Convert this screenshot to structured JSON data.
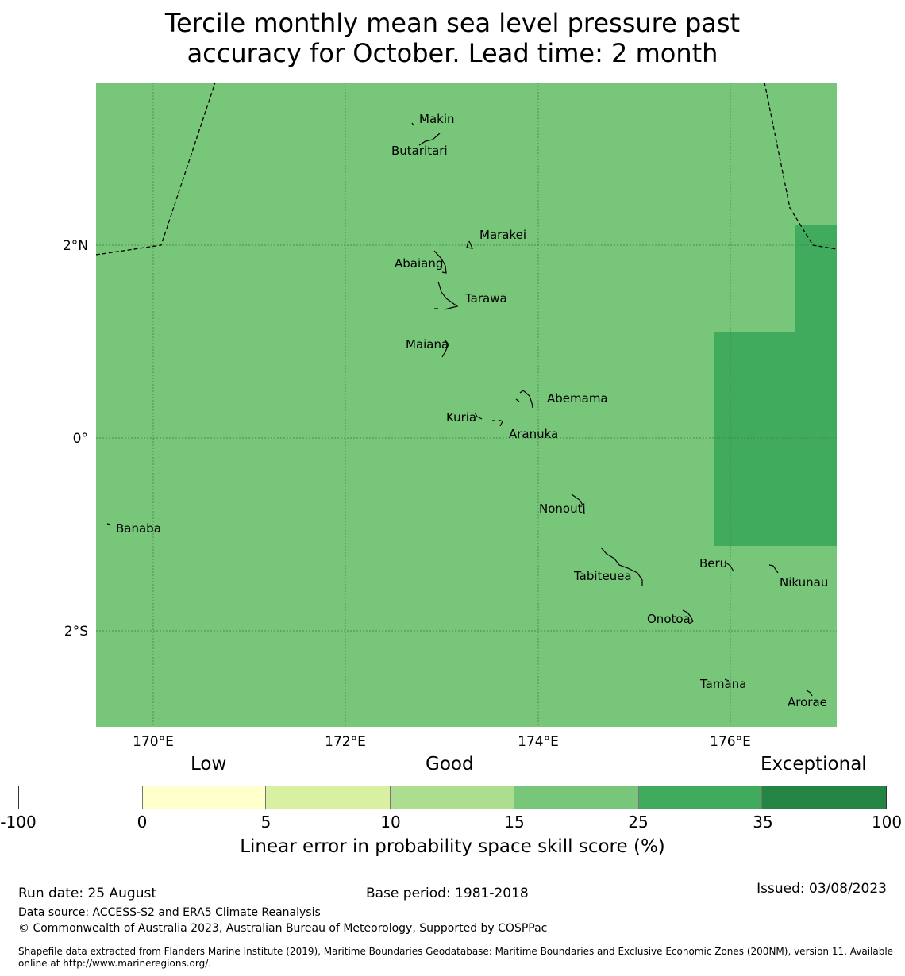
{
  "title_line1": "Tercile monthly mean sea level pressure past",
  "title_line2": "accuracy for October. Lead time: 2 month",
  "colors": {
    "base_fill": "#78c679",
    "high_fill": "#41ab5d",
    "grid": "#3f7d43",
    "boundary": "#000000"
  },
  "map": {
    "lon_labels": [
      "170°E",
      "172°E",
      "174°E",
      "176°E"
    ],
    "lat_labels": [
      "2°N",
      "0°",
      "2°S"
    ],
    "islands": [
      {
        "name": "Makin"
      },
      {
        "name": "Butaritari"
      },
      {
        "name": "Marakei"
      },
      {
        "name": "Abaiang"
      },
      {
        "name": "Tarawa"
      },
      {
        "name": "Maiana"
      },
      {
        "name": "Abemama"
      },
      {
        "name": "Kuria"
      },
      {
        "name": "Aranuka"
      },
      {
        "name": "Banaba"
      },
      {
        "name": "Nonouti"
      },
      {
        "name": "Tabiteuea"
      },
      {
        "name": "Beru"
      },
      {
        "name": "Nikunau"
      },
      {
        "name": "Onotoa"
      },
      {
        "name": "Tamana"
      },
      {
        "name": "Arorae"
      }
    ]
  },
  "colorbar": {
    "categories": [
      "Low",
      "Good",
      "Exceptional"
    ],
    "ticks": [
      "-100",
      "0",
      "5",
      "10",
      "15",
      "25",
      "35",
      "100"
    ],
    "colors": [
      "#ffffff",
      "#ffffcc",
      "#d9f0a3",
      "#addd8e",
      "#78c679",
      "#41ab5d",
      "#238443"
    ],
    "label": "Linear error in probability space skill score (%)"
  },
  "footer": {
    "run_date": "Run date: 25 August",
    "base_period": "Base period: 1981-2018",
    "issued": "Issued: 03/08/2023",
    "data_source": "Data source: ACCESS-S2 and ERA5 Climate Reanalysis",
    "copyright": "© Commonwealth of Australia 2023, Australian Bureau of Meteorology, Supported by COSPPac",
    "shapefile_line1": "Shapefile data extracted from Flanders Marine Institute (2019), Maritime Boundaries Geodatabase: Maritime Boundaries and Exclusive Economic Zones (200NM), version 11. Available",
    "shapefile_line2": "online at http://www.marineregions.org/."
  }
}
